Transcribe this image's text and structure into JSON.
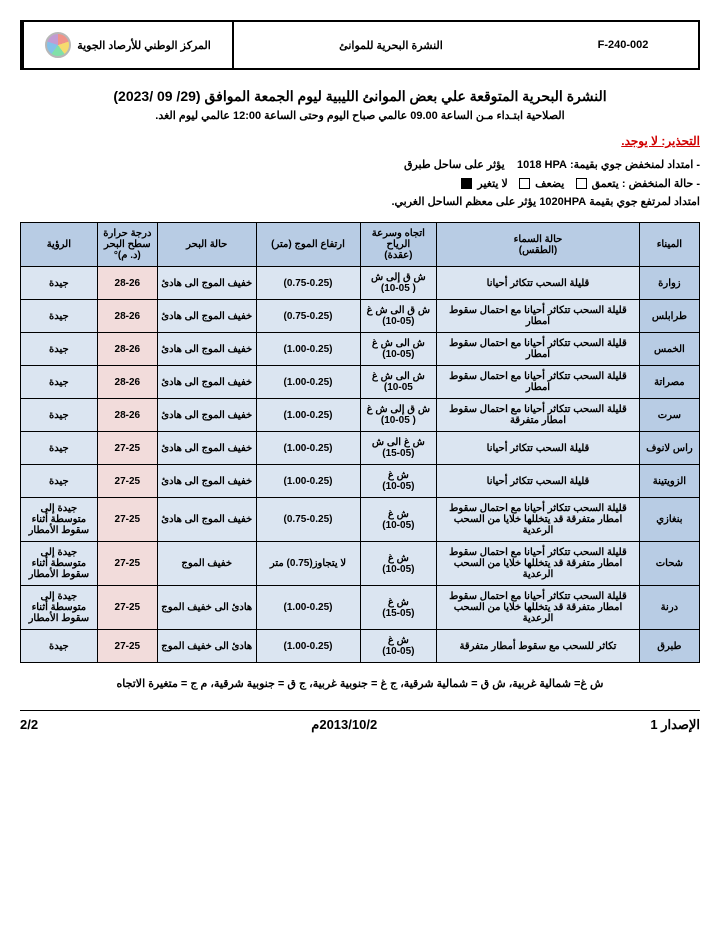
{
  "header": {
    "org": "المركز الوطني للأرصاد الجوية",
    "doc_title": "النشرة البحرية للموانئ",
    "code": "F-240-002"
  },
  "title": "النشرة البحرية المتوقعة علي بعض الموانئ الليبية ليوم الجمعة الموافق (29/ 09 /2023)",
  "subtitle": "الصلاحية ابتـداء مـن الساعة 09.00 عالمي صباح اليوم وحتى الساعة 12:00 عالمي ليوم الغد.",
  "warning_label": "التحذير:",
  "warning_text": "لا يوجد.",
  "info": {
    "line1_a": "- امتداد لمنخفض جوي بقيمة:",
    "line1_p": "1018 HPA",
    "line1_b": "يؤثر على  ساحل طبرق",
    "line2_a": "- حالة المنخفض :  يتعمق",
    "line2_b": "يضعف",
    "line2_c": "لا يتغير",
    "line3_a": "امتداد لمرتفع جوي بقيمة",
    "line3_p": "1020HPA",
    "line3_b": "يؤثر على معظم الساحل الغربي."
  },
  "columns": [
    "الميناء",
    "حالة السماء\n(الطقس)",
    "اتجاه وسرعة الرياح\n(عقدة)",
    "ارتفاع الموج (متر)",
    "حالة البحر",
    "درجة حرارة سطح البحر\n(د. م)°",
    "الرؤية"
  ],
  "rows": [
    {
      "port": "زوارة",
      "sky": "قليلة السحب تتكاثر أحيانا",
      "wind": "ش ق إلى ش\n( 10-05)",
      "wave": "(0.75-0.25)",
      "sea": "خفيف الموج الى هادئ",
      "temp": "28-26",
      "vis": "جيدة"
    },
    {
      "port": "طرابلس",
      "sky": "قليلة السحب تتكاثر أحيانا مع احتمال سقوط امطار",
      "wind": "ش ق الى ش غ\n(10-05)",
      "wave": "(0.75-0.25)",
      "sea": "خفيف الموج الى هادئ",
      "temp": "28-26",
      "vis": "جيدة"
    },
    {
      "port": "الخمس",
      "sky": "قليلة السحب تتكاثر أحيانا مع احتمال سقوط امطار",
      "wind": "ش الى ش غ\n(10-05)",
      "wave": "(1.00-0.25)",
      "sea": "خفيف الموج الى هادئ",
      "temp": "28-26",
      "vis": "جيدة"
    },
    {
      "port": "مصراتة",
      "sky": "قليلة السحب تتكاثر أحيانا مع احتمال سقوط امطار",
      "wind": "ش الى ش غ\n10-05)",
      "wave": "(1.00-0.25)",
      "sea": "خفيف الموج الى هادئ",
      "temp": "28-26",
      "vis": "جيدة"
    },
    {
      "port": "سرت",
      "sky": "قليلة السحب تتكاثر أحيانا مع احتمال سقوط امطار متفرقة",
      "wind": "ش ق إلى ش غ\n( 10-05)",
      "wave": "(1.00-0.25)",
      "sea": "خفيف الموج الى هادئ",
      "temp": "28-26",
      "vis": "جيدة"
    },
    {
      "port": "راس لانوف",
      "sky": "قليلة السحب تتكاثر أحيانا",
      "wind": "ش غ الى ش\n(15-05)",
      "wave": "(1.00-0.25)",
      "sea": "خفيف الموج الى هادئ",
      "temp": "27-25",
      "vis": "جيدة"
    },
    {
      "port": "الزويتينة",
      "sky": "قليلة السحب تتكاثر أحيانا",
      "wind": "ش غ\n(10-05)",
      "wave": "(1.00-0.25)",
      "sea": "خفيف الموج الى هادئ",
      "temp": "27-25",
      "vis": "جيدة"
    },
    {
      "port": "بنغازي",
      "sky": "قليلة السحب تتكاثر أحيانا مع احتمال سقوط امطار متفرقة قد يتخللها خلايا من السحب الرعدية",
      "wind": "ش غ\n(10-05)",
      "wave": "(0.75-0.25)",
      "sea": "خفيف الموج الى هادئ",
      "temp": "27-25",
      "vis": "جيدة إلى متوسطة أثناء سقوط الأمطار"
    },
    {
      "port": "شحات",
      "sky": "قليلة السحب تتكاثر أحيانا مع احتمال سقوط امطار متفرقة قد يتخللها خلايا من السحب الرعدية",
      "wind": "ش غ\n(10-05)",
      "wave": "لا يتجاوز(0.75) متر",
      "sea": "خفيف الموج",
      "temp": "27-25",
      "vis": "جيدة إلى متوسطة أثناء سقوط الأمطار"
    },
    {
      "port": "درنة",
      "sky": "قليلة السحب تتكاثر أحيانا مع احتمال سقوط امطار متفرقة قد يتخللها خلايا من السحب الرعدية",
      "wind": "ش غ\n(15-05)",
      "wave": "(1.00-0.25)",
      "sea": "هادئ الى خفيف الموج",
      "temp": "27-25",
      "vis": "جيدة إلى متوسطة أثناء سقوط الأمطار"
    },
    {
      "port": "طبرق",
      "sky": "تكاثر للسحب مع سقوط أمطار متفرقة",
      "wind": "ش غ\n(10-05)",
      "wave": "(1.00-0.25)",
      "sea": "هادئ الى خفيف الموج",
      "temp": "27-25",
      "vis": "جيدة"
    }
  ],
  "legend": "ش غ= شمالية غربية، ش ق = شمالية شرقية، ج غ = جنوبية غربية، ج ق = جنوبية شرقية، م ج = متغيرة الاتجاه",
  "footer": {
    "version": "الإصدار 1",
    "date": "2013/10/2م",
    "page": "2/2"
  }
}
